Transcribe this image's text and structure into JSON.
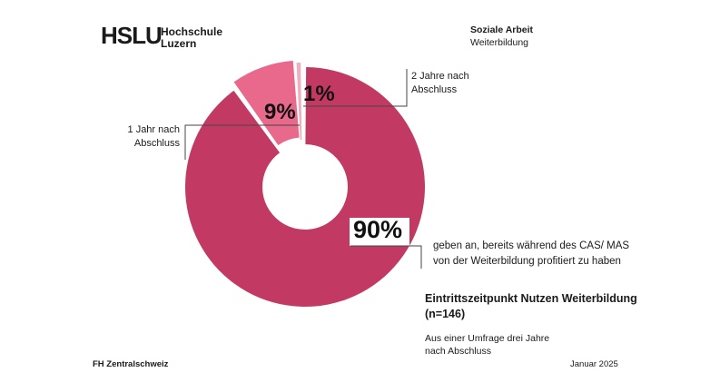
{
  "header": {
    "logo_acronym": "HSLU",
    "logo_name_line1": "Hochschule",
    "logo_name_line2": "Luzern",
    "department": "Soziale Arbeit",
    "unit": "Weiterbildung"
  },
  "chart_data": {
    "type": "donut",
    "title": "Eintrittszeitpunkt Nutzen Weiterbildung",
    "sample_size": "(n=146)",
    "note_line1": "Aus einer Umfrage drei Jahre",
    "note_line2": "nach Abschluss",
    "legend_position": "callouts",
    "slices": [
      {
        "value": 90,
        "pct_label": "90%",
        "color": "#c23a63",
        "annotation_line1": "geben an, bereits während des CAS/ MAS",
        "annotation_line2": "von der Weiterbildung profitiert zu haben"
      },
      {
        "value": 9,
        "pct_label": "9%",
        "color": "#e8698c",
        "label_line1": "1 Jahr nach",
        "label_line2": "Abschluss"
      },
      {
        "value": 1,
        "pct_label": "1%",
        "color": "#eeafbf",
        "label_line1": "2 Jahre nach",
        "label_line2": "Abschluss"
      }
    ]
  },
  "footer": {
    "left": "FH Zentralschweiz",
    "right": "Januar 2025"
  }
}
